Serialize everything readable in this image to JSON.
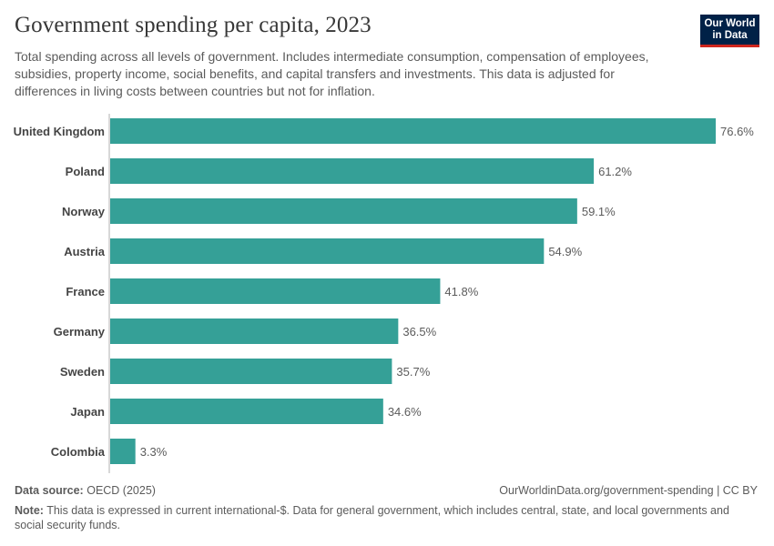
{
  "header": {
    "title": "Government spending per capita, 2023",
    "subtitle": "Total spending across all levels of government. Includes intermediate consumption, compensation of employees, subsidies, property income, social benefits, and capital transfers and investments. This data is adjusted for differences in living costs between countries but not for inflation.",
    "logo_line1": "Our World",
    "logo_line2": "in Data"
  },
  "footer": {
    "source_label": "Data source:",
    "source_value": "OECD (2025)",
    "url": "OurWorldinData.org/government-spending | CC BY",
    "note_label": "Note:",
    "note_text": "This data is expressed in current international-$. Data for general government, which includes central, state, and local governments and social security funds."
  },
  "colors": {
    "bar": "#35a097",
    "axis": "#b0b0b0",
    "label": "#444444",
    "value": "#5b5b5b"
  },
  "chart_data": {
    "type": "bar",
    "orientation": "horizontal",
    "categories": [
      "United Kingdom",
      "Poland",
      "Norway",
      "Austria",
      "France",
      "Germany",
      "Sweden",
      "Japan",
      "Colombia"
    ],
    "values": [
      76.6,
      61.2,
      59.1,
      54.9,
      41.8,
      36.5,
      35.7,
      34.6,
      3.3
    ],
    "value_labels": [
      "76.6%",
      "61.2%",
      "59.1%",
      "54.9%",
      "41.8%",
      "36.5%",
      "35.7%",
      "34.6%",
      "3.3%"
    ],
    "xlim": [
      0,
      76.6
    ],
    "grid": false,
    "legend": "none"
  }
}
